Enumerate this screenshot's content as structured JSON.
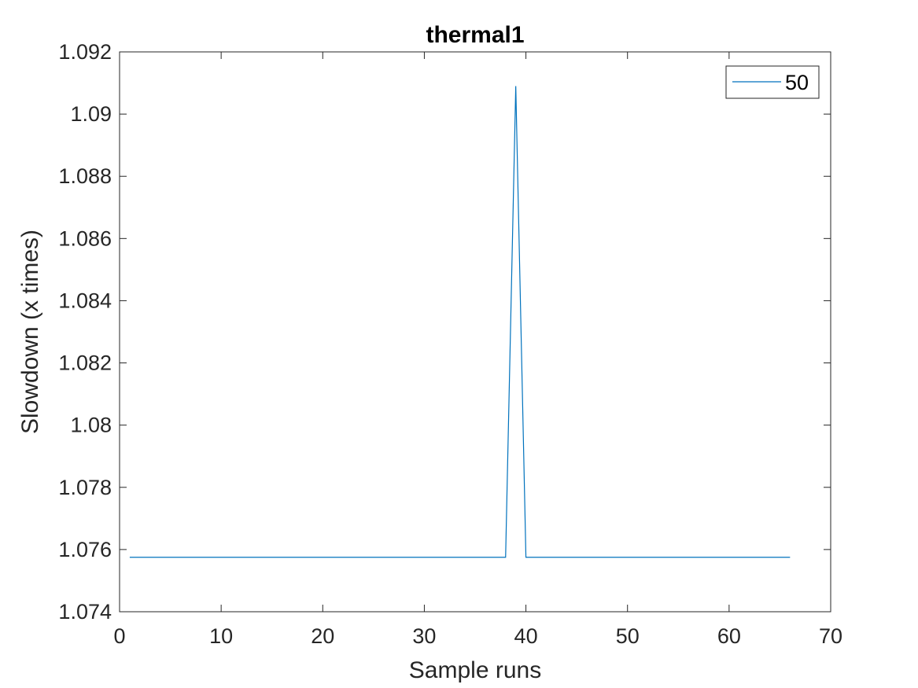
{
  "chart_data": {
    "type": "line",
    "title": "thermal1",
    "xlabel": "Sample runs",
    "ylabel": "Slowdown (x times)",
    "xlim": [
      0,
      70
    ],
    "ylim": [
      1.074,
      1.092
    ],
    "xticks": [
      0,
      10,
      20,
      30,
      40,
      50,
      60,
      70
    ],
    "yticks": [
      1.074,
      1.076,
      1.078,
      1.08,
      1.082,
      1.084,
      1.086,
      1.088,
      1.09,
      1.092
    ],
    "xtick_labels": [
      "0",
      "10",
      "20",
      "30",
      "40",
      "50",
      "60",
      "70"
    ],
    "ytick_labels": [
      "1.074",
      "1.076",
      "1.078",
      "1.08",
      "1.082",
      "1.084",
      "1.086",
      "1.088",
      "1.09",
      "1.092"
    ],
    "grid": false,
    "legend_position": "top-right",
    "series": [
      {
        "name": "50",
        "color": "#0072BD",
        "x": [
          1,
          38,
          39,
          40,
          66
        ],
        "y": [
          1.07575,
          1.07575,
          1.0909,
          1.07575,
          1.07575
        ]
      }
    ]
  }
}
